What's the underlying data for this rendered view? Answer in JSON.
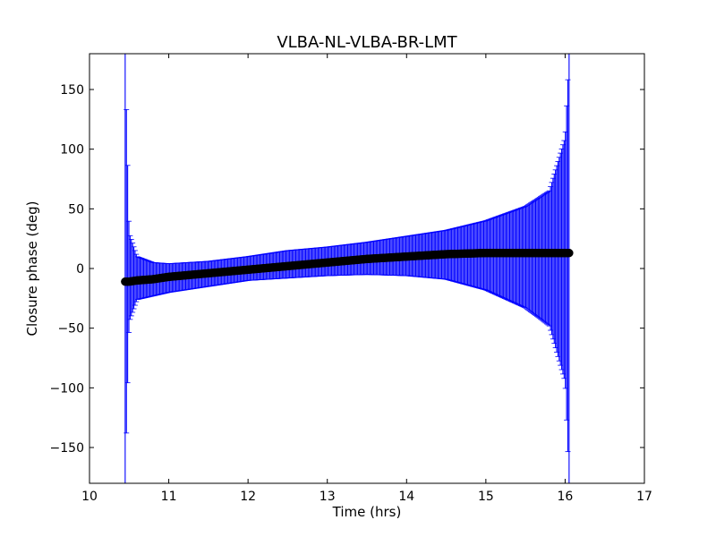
{
  "chart_data": {
    "type": "scatter",
    "title": "VLBA-NL-VLBA-BR-LMT",
    "xlabel": "Time (hrs)",
    "ylabel": "Closure phase (deg)",
    "xlim": [
      10,
      17
    ],
    "ylim": [
      -180,
      180
    ],
    "xticks": [
      10,
      11,
      12,
      13,
      14,
      15,
      16,
      17
    ],
    "yticks": [
      -150,
      -100,
      -50,
      0,
      50,
      100,
      150
    ],
    "xtick_labels": [
      "10",
      "11",
      "12",
      "13",
      "14",
      "15",
      "16",
      "17"
    ],
    "ytick_labels": [
      "−150",
      "−100",
      "−50",
      "0",
      "50",
      "100",
      "150"
    ],
    "grid": false,
    "marker_color": "#000000",
    "errorbar_color": "#0000ff",
    "x_range": [
      10.45,
      16.05
    ],
    "series": [
      {
        "x": [
          10.45,
          10.5,
          10.6,
          10.8,
          11.0,
          11.5,
          12.0,
          12.5,
          13.0,
          13.5,
          14.0,
          14.5,
          15.0,
          15.5,
          15.8,
          16.0,
          16.05
        ],
        "y": [
          -11,
          -11,
          -10,
          -9,
          -7,
          -4,
          -1,
          2,
          5,
          8,
          10,
          12,
          13,
          13,
          13,
          13,
          13
        ],
        "err_upper": [
          180,
          30,
          10,
          5,
          4,
          6,
          10,
          15,
          18,
          22,
          27,
          32,
          40,
          52,
          65,
          110,
          180
        ],
        "err_lower": [
          -180,
          -45,
          -26,
          -23,
          -20,
          -15,
          -10,
          -8,
          -6,
          -5,
          -6,
          -9,
          -18,
          -33,
          -48,
          -95,
          -180
        ]
      }
    ]
  }
}
